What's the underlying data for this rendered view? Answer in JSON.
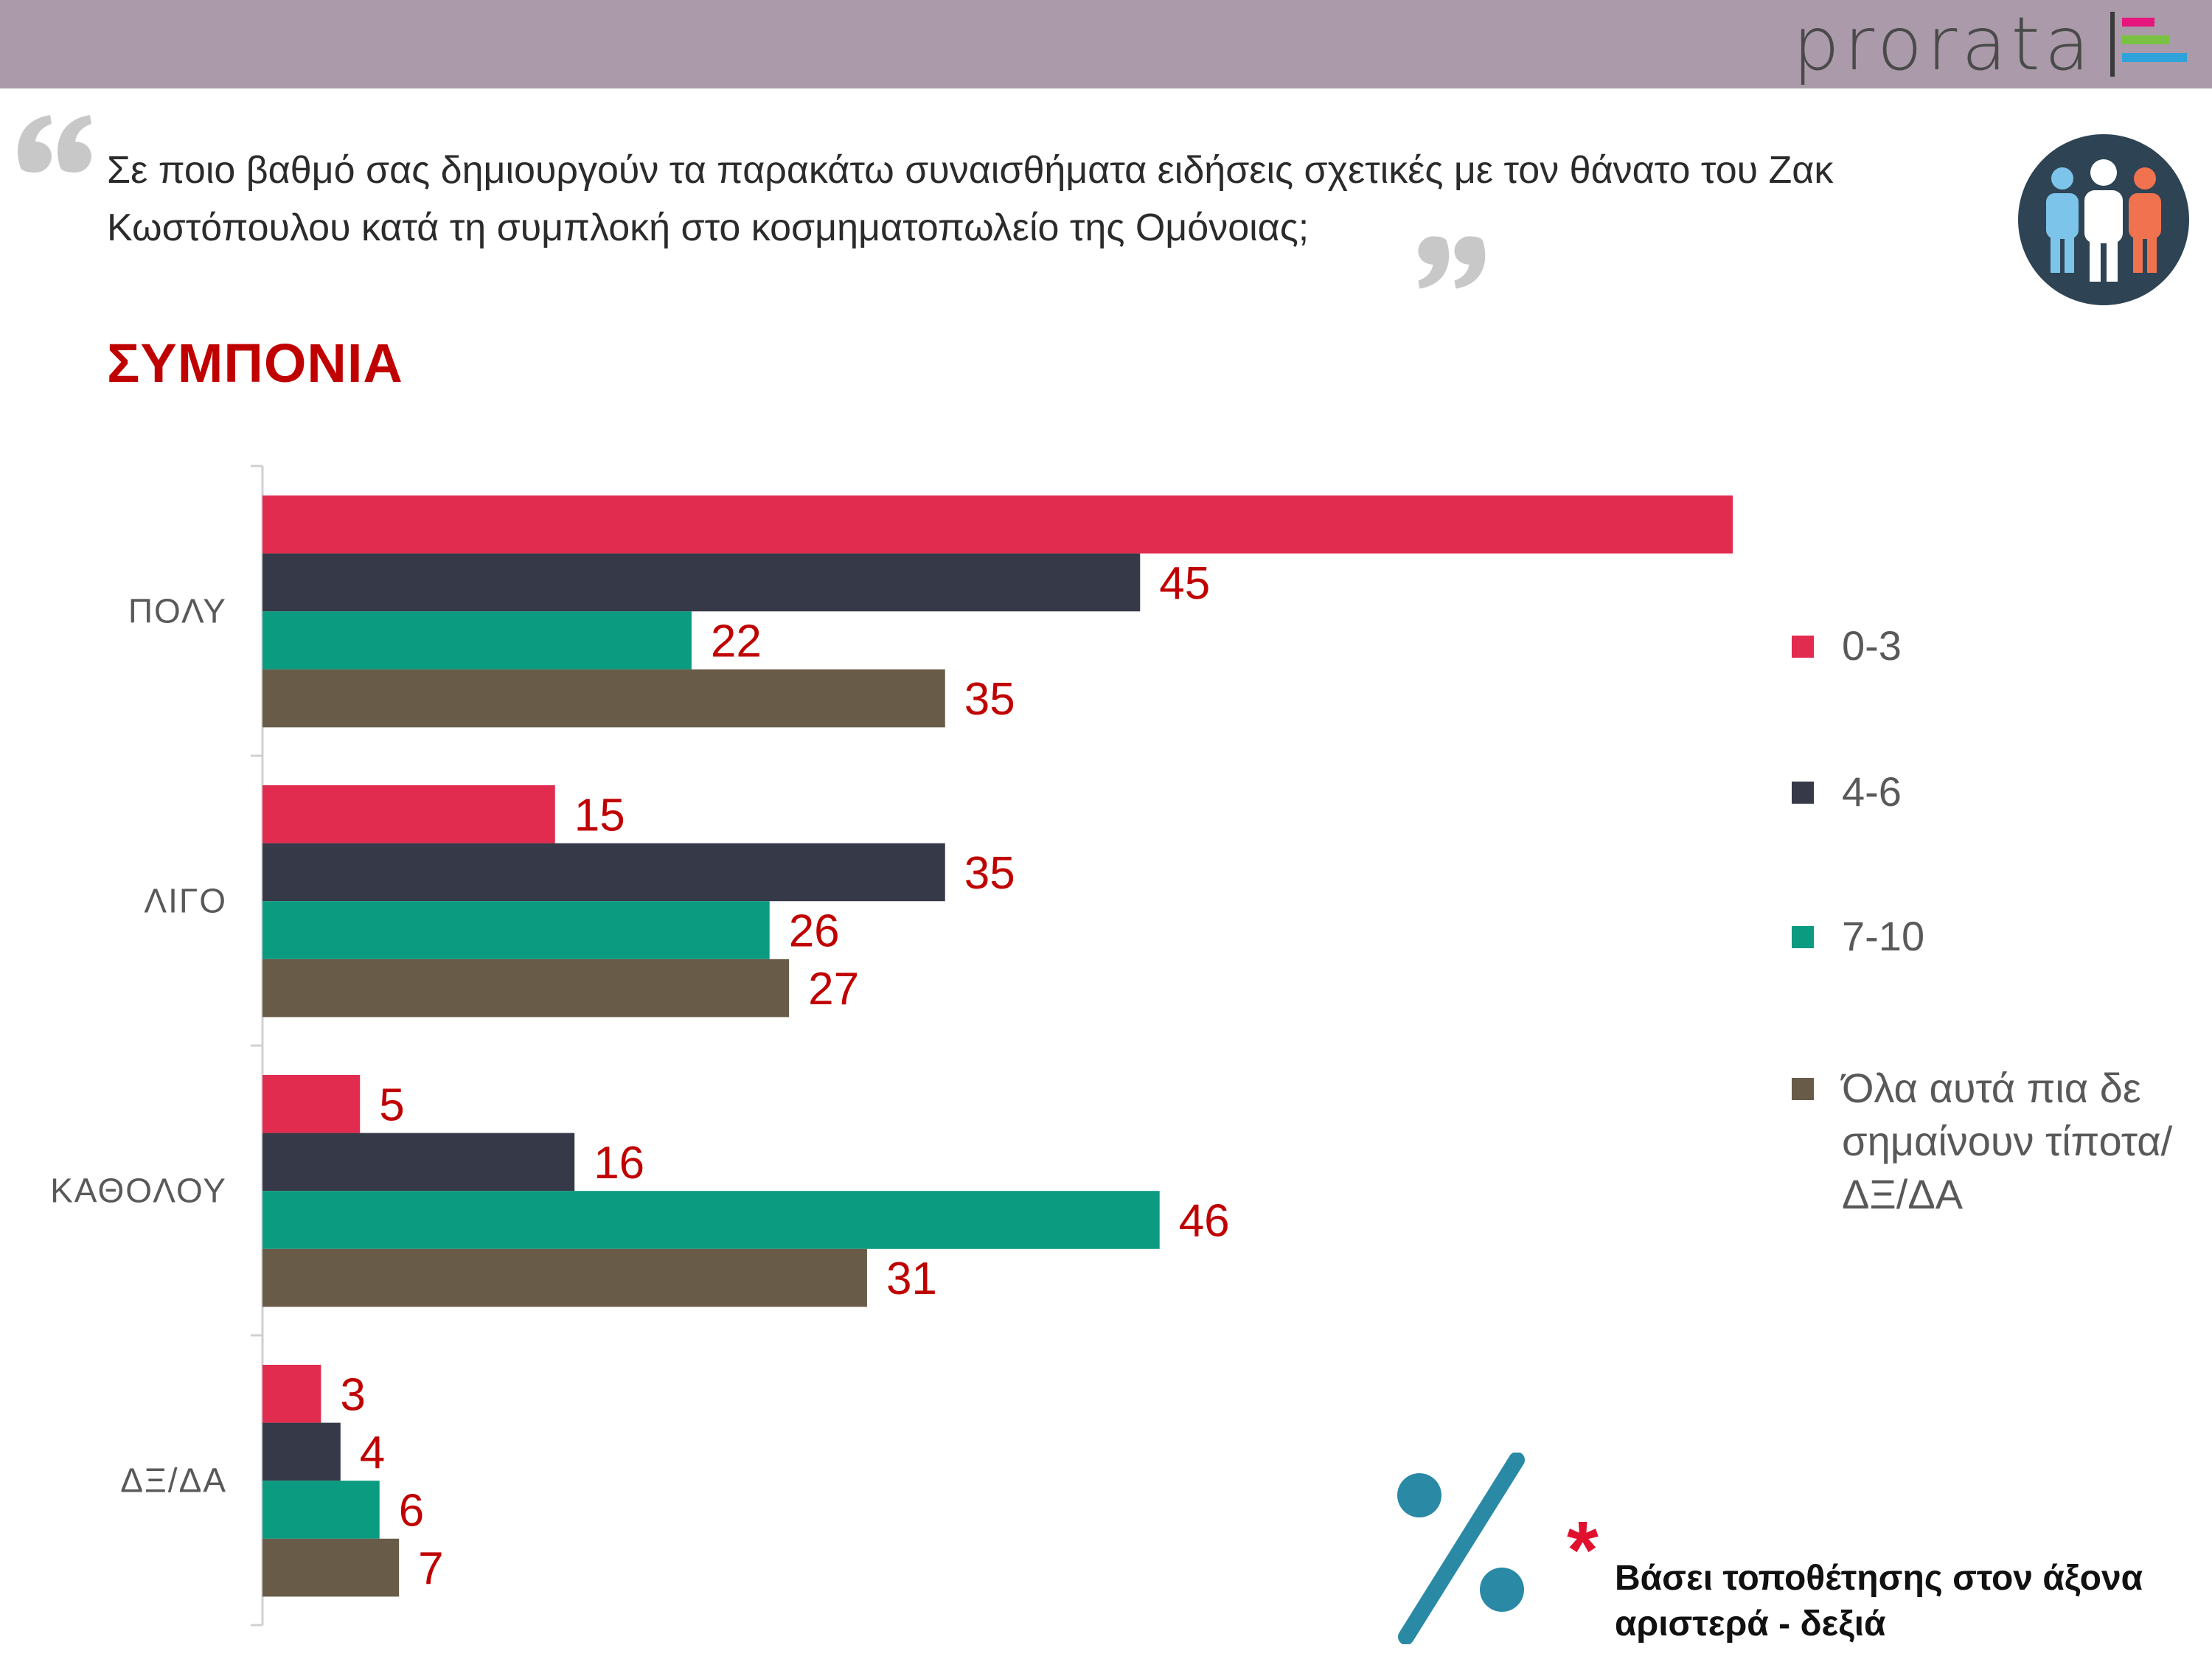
{
  "header": {
    "brand": "prorata",
    "brand_colors": [
      "#e5177d",
      "#7ac143",
      "#2ea3db"
    ]
  },
  "question": {
    "text": "Σε ποιο βαθμό σας δημιουργούν τα παρακάτω συναισθήματα ειδήσεις σχετικές με τον θάνατο του Ζακ Κωστόπουλου κατά τη συμπλοκή στο κοσμηματοπωλείο της Ομόνοιας;"
  },
  "section_title": "ΣΥΜΠΟΝΙΑ",
  "chart_data": {
    "type": "bar",
    "orientation": "horizontal",
    "title": "ΣΥΜΠΟΝΙΑ",
    "categories": [
      "ΠΟΛΥ",
      "ΛΙΓΟ",
      "ΚΑΘΟΛΟΥ",
      "ΔΞ/ΔΑ"
    ],
    "series": [
      {
        "name": "0-3",
        "color": "#e12b4f",
        "values": [
          77,
          15,
          5,
          3
        ]
      },
      {
        "name": "4-6",
        "color": "#363947",
        "values": [
          45,
          35,
          16,
          4
        ]
      },
      {
        "name": "7-10",
        "color": "#0a9b80",
        "values": [
          22,
          26,
          46,
          6
        ]
      },
      {
        "name": "Όλα αυτά πια δε σημαίνουν τίποτα/ΔΞ/ΔΑ",
        "color": "#685b48",
        "values": [
          35,
          27,
          31,
          7
        ]
      }
    ],
    "xlim": [
      0,
      80
    ],
    "grid": false,
    "legend": "right"
  },
  "legend": {
    "items": [
      {
        "label": "0-3",
        "color": "#e12b4f"
      },
      {
        "label": "4-6",
        "color": "#363947"
      },
      {
        "label": "7-10",
        "color": "#0a9b80"
      },
      {
        "label": "Όλα αυτά πια δε σημαίνουν τίποτα/ΔΞ/ΔΑ",
        "color": "#685b48"
      }
    ]
  },
  "note": {
    "text": "Βάσει τοποθέτησης στον άξονα αριστερά - δεξιά",
    "star": "*"
  },
  "icons": {
    "quote_open": "quote-open-icon",
    "quote_close": "quote-close-icon",
    "people": "people-group-icon",
    "percent": "percent-icon"
  }
}
